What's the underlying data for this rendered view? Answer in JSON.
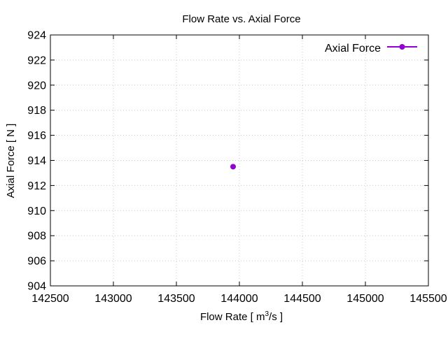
{
  "chart_data": {
    "type": "line",
    "title": "Flow Rate vs. Axial Force",
    "xlabel": {
      "prefix": "Flow Rate [ m",
      "superscript": "3",
      "suffix": "/s ]"
    },
    "ylabel": "Axial Force [ N ]",
    "xlim": [
      142500,
      145500
    ],
    "ylim": [
      904,
      924
    ],
    "xticks": [
      142500,
      143000,
      143500,
      144000,
      144500,
      145000,
      145500
    ],
    "yticks": [
      904,
      906,
      908,
      910,
      912,
      914,
      916,
      918,
      920,
      922,
      924
    ],
    "grid": true,
    "legend_position": "top-right",
    "series": [
      {
        "name": "Axial Force",
        "color": "#9400d3",
        "marker": "circle",
        "points": [
          {
            "x": 143950,
            "y": 913.5
          }
        ]
      }
    ]
  }
}
